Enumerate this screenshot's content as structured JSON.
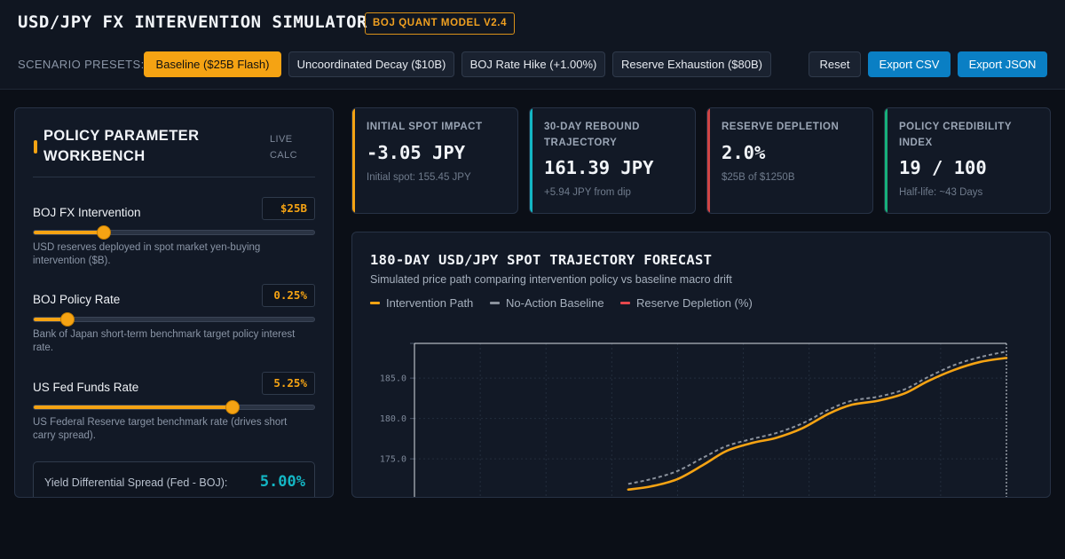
{
  "header": {
    "title": "USD/JPY FX INTERVENTION SIMULATOR",
    "badge": "BOJ QUANT MODEL V2.4",
    "presets_label": "SCENARIO PRESETS:",
    "presets": [
      "Baseline ($25B Flash)",
      "Uncoordinated Decay ($10B)",
      "BOJ Rate Hike (+1.00%)",
      "Reserve Exhaustion ($80B)"
    ],
    "active_preset": "Baseline ($25B Flash)",
    "actions": {
      "reset": "Reset",
      "export_csv": "Export CSV",
      "export_json": "Export JSON"
    }
  },
  "workbench": {
    "title": "POLICY PARAMETER WORKBENCH",
    "live": "LIVE CALC",
    "params": [
      {
        "label": "BOJ FX Intervention",
        "value": "$25B",
        "level": 0.25,
        "desc": "USD reserves deployed in spot market yen-buying intervention ($B)."
      },
      {
        "label": "BOJ Policy Rate",
        "value": "0.25%",
        "level": 0.12,
        "desc": "Bank of Japan short-term benchmark target policy interest rate."
      },
      {
        "label": "US Fed Funds Rate",
        "value": "5.25%",
        "level": 0.71,
        "desc": "US Federal Reserve target benchmark rate (drives short carry spread)."
      }
    ],
    "spread": {
      "label": "Yield Differential Spread (Fed - BOJ):",
      "value": "5.00%"
    }
  },
  "kpis": [
    {
      "label": "INITIAL SPOT IMPACT",
      "value": "-3.05 JPY",
      "sub": "Initial spot: 155.45 JPY",
      "color": "#f5a313"
    },
    {
      "label": "30-DAY REBOUND TRAJECTORY",
      "value": "161.39 JPY",
      "sub": "+5.94 JPY from dip",
      "color": "#14b6c4"
    },
    {
      "label": "RESERVE DEPLETION",
      "value": "2.0%",
      "sub": "$25B of $1250B",
      "color": "#d04545"
    },
    {
      "label": "POLICY CREDIBILITY INDEX",
      "value": "19 / 100",
      "sub": "Half-life: ~43 Days",
      "color": "#17b07a"
    }
  ],
  "chart": {
    "title": "180-DAY USD/JPY SPOT TRAJECTORY FORECAST",
    "subtitle": "Simulated price path comparing intervention policy vs baseline macro drift",
    "legend": [
      {
        "name": "Intervention Path",
        "color": "#f5a313"
      },
      {
        "name": "No-Action Baseline",
        "color": "#8a919c"
      },
      {
        "name": "Reserve Depletion (%)",
        "color": "#e5484d"
      }
    ]
  },
  "chart_data": {
    "type": "line",
    "title": "180-DAY USD/JPY SPOT TRAJECTORY FORECAST",
    "y_ticks": [
      175.0,
      180.0,
      185.0
    ],
    "ylim": [
      171.5,
      189.3
    ],
    "xlim": [
      0,
      180
    ],
    "grid": true,
    "legend_position": "top-left",
    "series": [
      {
        "name": "Intervention Path",
        "color": "#f5a313",
        "x": [
          65,
          72,
          80,
          88,
          95,
          103,
          110,
          118,
          126,
          133,
          141,
          149,
          156,
          164,
          172,
          180
        ],
        "y": [
          171.2,
          171.6,
          172.5,
          174.3,
          176.0,
          177.0,
          177.6,
          178.8,
          180.6,
          181.7,
          182.2,
          183.1,
          184.6,
          186.0,
          187.0,
          187.5
        ]
      },
      {
        "name": "No-Action Baseline",
        "color": "#8a919c",
        "x": [
          65,
          72,
          80,
          88,
          95,
          103,
          110,
          118,
          126,
          133,
          141,
          149,
          156,
          164,
          172,
          180
        ],
        "y": [
          171.9,
          172.5,
          173.5,
          175.2,
          176.6,
          177.5,
          178.2,
          179.4,
          181.1,
          182.2,
          182.7,
          183.6,
          185.1,
          186.6,
          187.6,
          188.3
        ]
      }
    ]
  }
}
